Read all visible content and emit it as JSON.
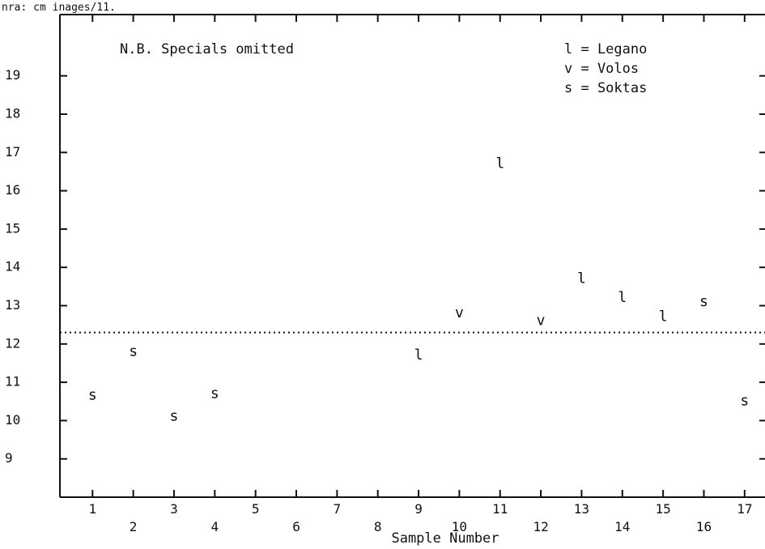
{
  "top_text": "nra: cm inages/11.",
  "chart_data": {
    "type": "scatter",
    "xlabel": "Sample Number",
    "ylabel": "",
    "xlim": [
      0.2,
      17.5
    ],
    "ylim": [
      8,
      20.6
    ],
    "x_ticks": [
      1,
      2,
      3,
      4,
      5,
      6,
      7,
      8,
      9,
      10,
      11,
      12,
      13,
      14,
      15,
      16,
      17
    ],
    "y_ticks": [
      9,
      10,
      11,
      12,
      13,
      14,
      15,
      16,
      17,
      18,
      19
    ],
    "reference_line": 12.3,
    "note": "N.B. Specials omitted",
    "legend": [
      {
        "symbol": "l",
        "label": "Legano"
      },
      {
        "symbol": "v",
        "label": "Volos"
      },
      {
        "symbol": "s",
        "label": "Soktas"
      }
    ],
    "points": [
      {
        "x": 1,
        "y": 10.65,
        "symbol": "s"
      },
      {
        "x": 2,
        "y": 11.8,
        "symbol": "s"
      },
      {
        "x": 3,
        "y": 10.1,
        "symbol": "s"
      },
      {
        "x": 4,
        "y": 10.7,
        "symbol": "s"
      },
      {
        "x": 9,
        "y": 11.7,
        "symbol": "l"
      },
      {
        "x": 10,
        "y": 12.8,
        "symbol": "v"
      },
      {
        "x": 11,
        "y": 16.7,
        "symbol": "l"
      },
      {
        "x": 12,
        "y": 12.6,
        "symbol": "v"
      },
      {
        "x": 13,
        "y": 13.7,
        "symbol": "l"
      },
      {
        "x": 14,
        "y": 13.2,
        "symbol": "l"
      },
      {
        "x": 15,
        "y": 12.7,
        "symbol": "l"
      },
      {
        "x": 16,
        "y": 13.1,
        "symbol": "s"
      },
      {
        "x": 17,
        "y": 10.5,
        "symbol": "s"
      }
    ]
  }
}
